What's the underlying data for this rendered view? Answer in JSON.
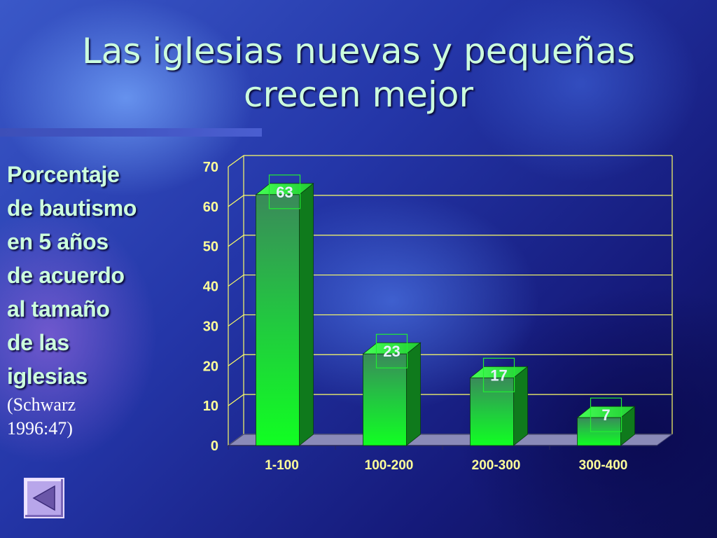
{
  "slide": {
    "title_line1": "Las iglesias nuevas y pequeñas",
    "title_line2": "crecen mejor",
    "side_lines": [
      "Porcentaje",
      "de bautismo",
      "en 5 años",
      "de acuerdo",
      "al tamaño",
      "de las",
      "iglesias"
    ],
    "citation_line1": "(Schwarz",
    "citation_line2": "1996:47)",
    "nav_icon": "triangle-back-icon"
  },
  "colors": {
    "title": "#ccffdd",
    "bar": "#22dd33",
    "bar_side": "#0f7a1c",
    "grid": "#ffff66",
    "ticks": "#ffff99",
    "floor": "#8a8ab8"
  },
  "chart_data": {
    "type": "bar",
    "categories": [
      "1-100",
      "100-200",
      "200-300",
      "300-400"
    ],
    "values": [
      63,
      23,
      17,
      7
    ],
    "ylim": [
      0,
      70
    ],
    "yticks": [
      0,
      10,
      20,
      30,
      40,
      50,
      60,
      70
    ],
    "data_labels": [
      "63",
      "23",
      "17",
      "7"
    ],
    "grid": true,
    "style": "3d-column"
  }
}
